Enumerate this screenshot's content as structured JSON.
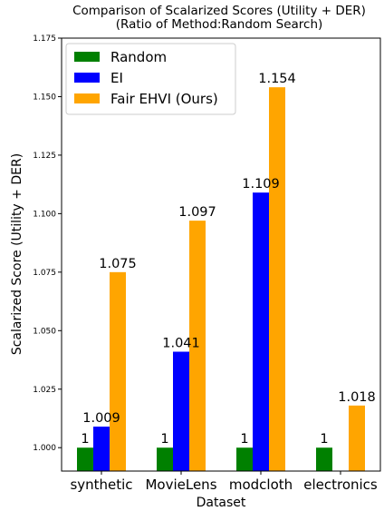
{
  "chart_data": {
    "type": "bar",
    "title": "Comparison of Scalarized Scores (Utility + DER)",
    "subtitle": "(Ratio of Method:Random Search)",
    "xlabel": "Dataset",
    "ylabel": "Scalarized Score (Utility + DER)",
    "categories": [
      "synthetic",
      "MovieLens",
      "modcloth",
      "electronics"
    ],
    "ylim": [
      0.99,
      1.175
    ],
    "yticks": [
      1.0,
      1.025,
      1.05,
      1.075,
      1.1,
      1.125,
      1.15,
      1.175
    ],
    "ytick_labels": [
      "1.000",
      "1.025",
      "1.050",
      "1.075",
      "1.100",
      "1.125",
      "1.150",
      "1.175"
    ],
    "grid": false,
    "legend_position": "top-left",
    "series": [
      {
        "name": "Random",
        "color": "#008000",
        "values": [
          1.0,
          1.0,
          1.0,
          1.0
        ],
        "labels": [
          "1",
          "1",
          "1",
          "1"
        ]
      },
      {
        "name": "EI",
        "color": "#0000ff",
        "values": [
          1.009,
          1.041,
          1.109,
          null
        ],
        "labels": [
          "1.009",
          "1.041",
          "1.109",
          ""
        ]
      },
      {
        "name": "Fair EHVI (Ours)",
        "color": "#ffa500",
        "values": [
          1.075,
          1.097,
          1.154,
          1.018
        ],
        "labels": [
          "1.075",
          "1.097",
          "1.154",
          "1.018"
        ]
      }
    ]
  }
}
